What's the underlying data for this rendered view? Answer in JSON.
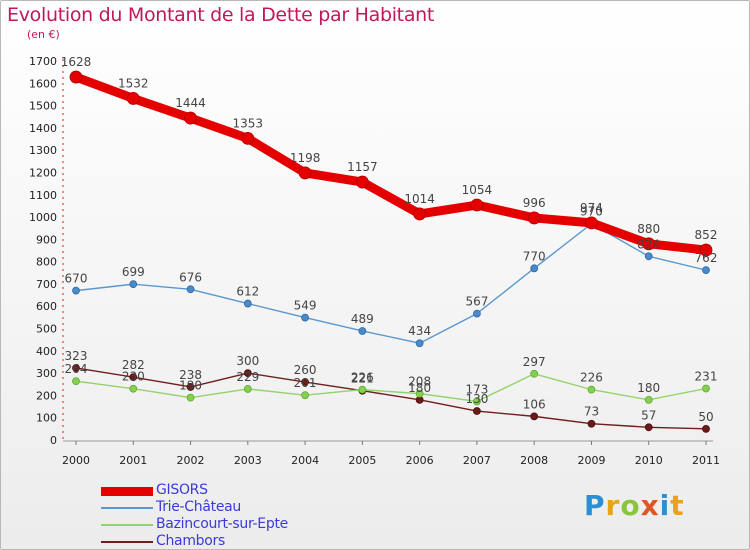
{
  "chart_data": {
    "type": "line",
    "title": "Evolution du Montant de la Dette par Habitant",
    "subtitle": "(en €)",
    "categories": [
      "2000",
      "2001",
      "2002",
      "2003",
      "2004",
      "2005",
      "2006",
      "2007",
      "2008",
      "2009",
      "2010",
      "2011"
    ],
    "ylim": [
      0,
      1700
    ],
    "yticks": [
      0,
      100,
      200,
      300,
      400,
      500,
      600,
      700,
      800,
      900,
      1000,
      1100,
      1200,
      1300,
      1400,
      1500,
      1600,
      1700
    ],
    "grid": false,
    "legend_position": "bottom-left",
    "series": [
      {
        "name": "GISORS",
        "color": "#e50000",
        "values": [
          1628,
          1532,
          1444,
          1353,
          1198,
          1157,
          1014,
          1054,
          996,
          974,
          880,
          852
        ]
      },
      {
        "name": "Trie-Château",
        "color": "#5b97cf",
        "values": [
          670,
          699,
          676,
          612,
          549,
          489,
          434,
          567,
          770,
          970,
          824,
          762
        ]
      },
      {
        "name": "Bazincourt-sur-Epte",
        "color": "#93d36c",
        "values": [
          264,
          230,
          190,
          229,
          201,
          226,
          208,
          173,
          297,
          226,
          180,
          231
        ]
      },
      {
        "name": "Chambors",
        "color": "#6e1e1e",
        "values": [
          323,
          282,
          238,
          300,
          260,
          221,
          180,
          130,
          106,
          73,
          57,
          50
        ]
      }
    ]
  },
  "logo": [
    "P",
    "r",
    "o",
    "x",
    "i",
    "t",
    "i"
  ]
}
